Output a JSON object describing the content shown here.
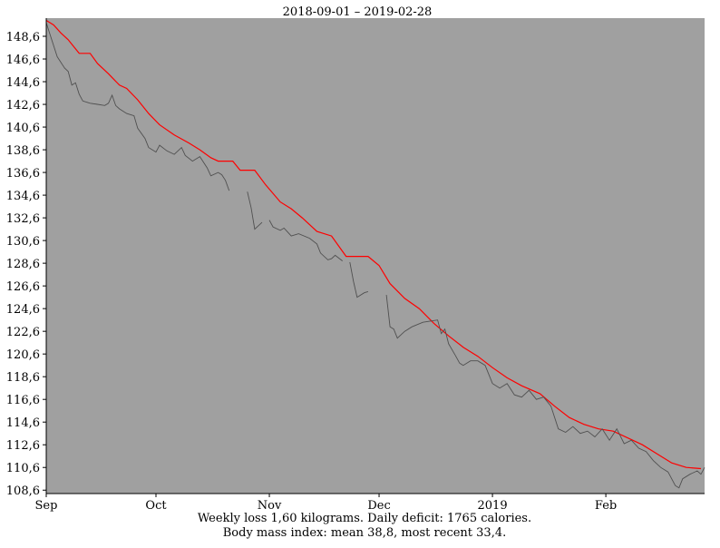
{
  "chart_data": {
    "type": "line",
    "title": "2018-09-01 – 2019-02-28",
    "xlabel": "",
    "ylabel": "",
    "x_range": [
      "2018-09-01",
      "2019-02-28"
    ],
    "ylim": [
      108.3,
      150.2
    ],
    "grid": false,
    "y_ticks": [
      108.6,
      110.6,
      112.6,
      114.6,
      116.6,
      118.6,
      120.6,
      122.6,
      124.6,
      126.6,
      128.6,
      130.6,
      132.6,
      134.6,
      136.6,
      138.6,
      140.6,
      142.6,
      144.6,
      146.6,
      148.6
    ],
    "y_tick_labels": [
      "108,6",
      "110,6",
      "112,6",
      "114,6",
      "116,6",
      "118,6",
      "120,6",
      "122,6",
      "124,6",
      "126,6",
      "128,6",
      "130,6",
      "132,6",
      "134,6",
      "136,6",
      "138,6",
      "140,6",
      "142,6",
      "144,6",
      "146,6",
      "148,6"
    ],
    "x_ticks": [
      {
        "label": "Sep",
        "date": "2018-09-01"
      },
      {
        "label": "Oct",
        "date": "2018-10-01"
      },
      {
        "label": "Nov",
        "date": "2018-11-01"
      },
      {
        "label": "Dec",
        "date": "2018-12-01"
      },
      {
        "label": "2019",
        "date": "2019-01-01"
      },
      {
        "label": "Feb",
        "date": "2019-02-01"
      }
    ],
    "colors": {
      "plot_bg": "#a0a0a0",
      "trend": "#ff0000",
      "measured": "#505050"
    },
    "series": [
      {
        "key": "trend",
        "points": [
          [
            "2018-09-01",
            150.0
          ],
          [
            "2018-09-03",
            149.6
          ],
          [
            "2018-09-05",
            148.9
          ],
          [
            "2018-09-07",
            148.3
          ],
          [
            "2018-09-08",
            147.9
          ],
          [
            "2018-09-10",
            147.1
          ],
          [
            "2018-09-13",
            147.1
          ],
          [
            "2018-09-15",
            146.2
          ],
          [
            "2018-09-18",
            145.3
          ],
          [
            "2018-09-21",
            144.3
          ],
          [
            "2018-09-23",
            144.0
          ],
          [
            "2018-09-26",
            143.0
          ],
          [
            "2018-09-29",
            141.8
          ],
          [
            "2018-10-02",
            140.8
          ],
          [
            "2018-10-06",
            139.9
          ],
          [
            "2018-10-10",
            139.2
          ],
          [
            "2018-10-13",
            138.6
          ],
          [
            "2018-10-16",
            137.9
          ],
          [
            "2018-10-18",
            137.6
          ],
          [
            "2018-10-22",
            137.6
          ],
          [
            "2018-10-24",
            136.8
          ],
          [
            "2018-10-28",
            136.8
          ],
          [
            "2018-10-31",
            135.5
          ],
          [
            "2018-11-04",
            134.0
          ],
          [
            "2018-11-07",
            133.4
          ],
          [
            "2018-11-10",
            132.6
          ],
          [
            "2018-11-14",
            131.4
          ],
          [
            "2018-11-18",
            131.0
          ],
          [
            "2018-11-22",
            129.2
          ],
          [
            "2018-11-25",
            129.2
          ],
          [
            "2018-11-28",
            129.2
          ],
          [
            "2018-12-01",
            128.4
          ],
          [
            "2018-12-04",
            126.8
          ],
          [
            "2018-12-08",
            125.5
          ],
          [
            "2018-12-12",
            124.6
          ],
          [
            "2018-12-16",
            123.3
          ],
          [
            "2018-12-20",
            122.2
          ],
          [
            "2018-12-24",
            121.2
          ],
          [
            "2018-12-28",
            120.4
          ],
          [
            "2019-01-01",
            119.4
          ],
          [
            "2019-01-05",
            118.5
          ],
          [
            "2019-01-09",
            117.8
          ],
          [
            "2019-01-14",
            117.1
          ],
          [
            "2019-01-18",
            116.0
          ],
          [
            "2019-01-22",
            115.0
          ],
          [
            "2019-01-26",
            114.4
          ],
          [
            "2019-01-30",
            114.0
          ],
          [
            "2019-02-03",
            113.8
          ],
          [
            "2019-02-07",
            113.2
          ],
          [
            "2019-02-11",
            112.6
          ],
          [
            "2019-02-15",
            111.8
          ],
          [
            "2019-02-19",
            111.0
          ],
          [
            "2019-02-23",
            110.6
          ],
          [
            "2019-02-27",
            110.5
          ]
        ]
      },
      {
        "key": "measured",
        "segments": [
          [
            [
              "2018-09-01",
              149.8
            ],
            [
              "2018-09-02",
              148.8
            ],
            [
              "2018-09-04",
              146.8
            ],
            [
              "2018-09-06",
              145.8
            ],
            [
              "2018-09-07",
              145.5
            ],
            [
              "2018-09-08",
              144.3
            ],
            [
              "2018-09-09",
              144.5
            ],
            [
              "2018-09-10",
              143.5
            ],
            [
              "2018-09-11",
              142.9
            ],
            [
              "2018-09-13",
              142.7
            ],
            [
              "2018-09-15",
              142.6
            ],
            [
              "2018-09-17",
              142.5
            ],
            [
              "2018-09-18",
              142.7
            ],
            [
              "2018-09-19",
              143.4
            ],
            [
              "2018-09-20",
              142.5
            ],
            [
              "2018-09-21",
              142.2
            ],
            [
              "2018-09-23",
              141.8
            ],
            [
              "2018-09-25",
              141.6
            ],
            [
              "2018-09-26",
              140.5
            ],
            [
              "2018-09-28",
              139.6
            ],
            [
              "2018-09-29",
              138.8
            ],
            [
              "2018-10-01",
              138.4
            ],
            [
              "2018-10-02",
              139.0
            ],
            [
              "2018-10-04",
              138.5
            ],
            [
              "2018-10-06",
              138.2
            ],
            [
              "2018-10-08",
              138.8
            ],
            [
              "2018-10-09",
              138.1
            ],
            [
              "2018-10-11",
              137.6
            ],
            [
              "2018-10-13",
              138.0
            ],
            [
              "2018-10-15",
              137.0
            ],
            [
              "2018-10-16",
              136.3
            ],
            [
              "2018-10-18",
              136.6
            ],
            [
              "2018-10-19",
              136.4
            ],
            [
              "2018-10-20",
              135.9
            ],
            [
              "2018-10-21",
              135.0
            ]
          ],
          [
            [
              "2018-10-26",
              134.9
            ],
            [
              "2018-10-27",
              133.5
            ],
            [
              "2018-10-28",
              131.6
            ],
            [
              "2018-10-30",
              132.2
            ]
          ],
          [
            [
              "2018-11-01",
              132.4
            ],
            [
              "2018-11-02",
              131.8
            ],
            [
              "2018-11-04",
              131.5
            ],
            [
              "2018-11-05",
              131.7
            ],
            [
              "2018-11-07",
              131.0
            ],
            [
              "2018-11-09",
              131.2
            ],
            [
              "2018-11-12",
              130.8
            ],
            [
              "2018-11-14",
              130.3
            ],
            [
              "2018-11-15",
              129.5
            ],
            [
              "2018-11-17",
              128.9
            ],
            [
              "2018-11-18",
              129.0
            ],
            [
              "2018-11-19",
              129.3
            ],
            [
              "2018-11-21",
              128.8
            ]
          ],
          [
            [
              "2018-11-23",
              128.7
            ],
            [
              "2018-11-24",
              127.0
            ],
            [
              "2018-11-25",
              125.6
            ],
            [
              "2018-11-27",
              126.0
            ],
            [
              "2018-11-28",
              126.1
            ]
          ],
          [
            [
              "2018-12-03",
              125.8
            ],
            [
              "2018-12-04",
              123.0
            ],
            [
              "2018-12-05",
              122.8
            ],
            [
              "2018-12-06",
              122.0
            ],
            [
              "2018-12-08",
              122.6
            ],
            [
              "2018-12-10",
              123.0
            ],
            [
              "2018-12-13",
              123.4
            ],
            [
              "2018-12-15",
              123.5
            ],
            [
              "2018-12-17",
              123.6
            ],
            [
              "2018-12-18",
              122.4
            ],
            [
              "2018-12-19",
              122.8
            ],
            [
              "2018-12-20",
              121.5
            ],
            [
              "2018-12-22",
              120.4
            ],
            [
              "2018-12-23",
              119.8
            ],
            [
              "2018-12-24",
              119.6
            ],
            [
              "2018-12-26",
              120.0
            ],
            [
              "2018-12-28",
              120.0
            ],
            [
              "2018-12-30",
              119.6
            ],
            [
              "2019-01-01",
              118.0
            ],
            [
              "2019-01-03",
              117.6
            ],
            [
              "2019-01-05",
              118.0
            ],
            [
              "2019-01-07",
              117.0
            ],
            [
              "2019-01-09",
              116.8
            ],
            [
              "2019-01-11",
              117.4
            ],
            [
              "2019-01-13",
              116.6
            ],
            [
              "2019-01-15",
              116.8
            ],
            [
              "2019-01-17",
              116.0
            ],
            [
              "2019-01-19",
              114.0
            ],
            [
              "2019-01-21",
              113.7
            ],
            [
              "2019-01-23",
              114.2
            ],
            [
              "2019-01-25",
              113.6
            ],
            [
              "2019-01-27",
              113.8
            ],
            [
              "2019-01-29",
              113.3
            ],
            [
              "2019-01-31",
              114.0
            ],
            [
              "2019-02-02",
              113.0
            ],
            [
              "2019-02-04",
              114.0
            ],
            [
              "2019-02-06",
              112.7
            ],
            [
              "2019-02-08",
              113.0
            ],
            [
              "2019-02-10",
              112.3
            ],
            [
              "2019-02-12",
              112.0
            ],
            [
              "2019-02-14",
              111.2
            ],
            [
              "2019-02-16",
              110.6
            ],
            [
              "2019-02-18",
              110.2
            ],
            [
              "2019-02-19",
              109.6
            ],
            [
              "2019-02-20",
              109.0
            ],
            [
              "2019-02-21",
              108.8
            ],
            [
              "2019-02-22",
              109.6
            ],
            [
              "2019-02-24",
              110.0
            ],
            [
              "2019-02-26",
              110.3
            ],
            [
              "2019-02-27",
              110.0
            ],
            [
              "2019-02-28",
              110.6
            ]
          ]
        ]
      }
    ]
  },
  "footer": {
    "line1": "Weekly loss 1,60 kilograms.  Daily deficit:  1765 calories.",
    "line2": "Body mass index: mean 38,8, most recent 33,4."
  }
}
